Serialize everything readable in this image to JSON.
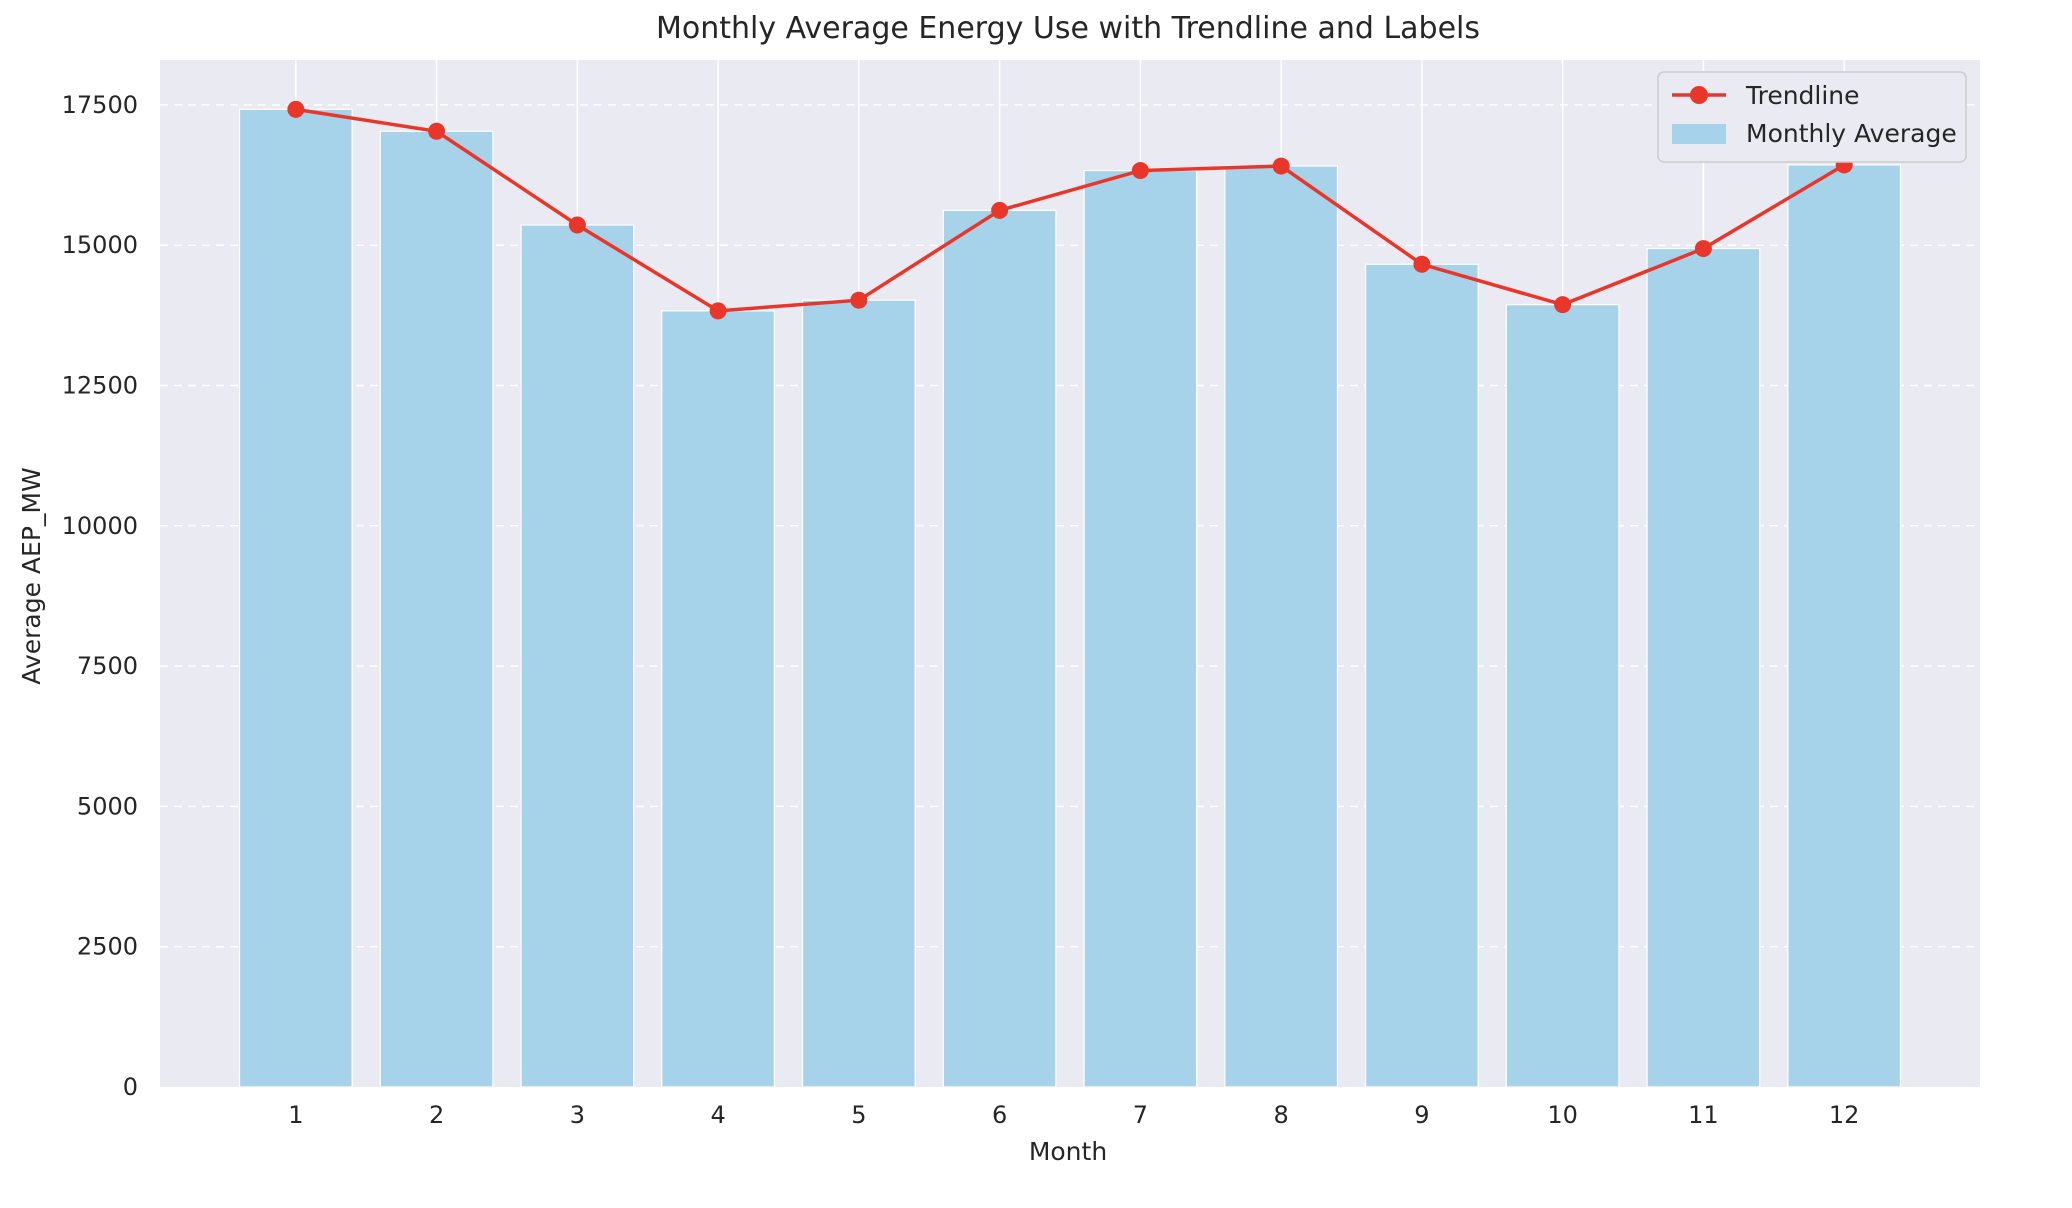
{
  "chart_data": {
    "type": "bar",
    "title": "Monthly Average Energy Use with Trendline and Labels",
    "xlabel": "Month",
    "ylabel": "Average AEP_MW",
    "categories": [
      "1",
      "2",
      "3",
      "4",
      "5",
      "6",
      "7",
      "8",
      "9",
      "10",
      "11",
      "12"
    ],
    "series": [
      {
        "name": "Monthly Average",
        "type": "bar",
        "color": "#a6d2ea",
        "values": [
          17420,
          17030,
          15360,
          13830,
          14020,
          15620,
          16330,
          16410,
          14660,
          13940,
          14940,
          16430
        ]
      },
      {
        "name": "Trendline",
        "type": "line",
        "color": "#e8372a",
        "values": [
          17420,
          17030,
          15360,
          13830,
          14020,
          15620,
          16330,
          16410,
          14660,
          13940,
          14940,
          16430
        ]
      }
    ],
    "ylim": [
      0,
      18300
    ],
    "yticks": [
      0,
      2500,
      5000,
      7500,
      10000,
      12500,
      15000,
      17500
    ],
    "grid": true,
    "legend_position": "top-right",
    "background": "#eaeaf2"
  }
}
